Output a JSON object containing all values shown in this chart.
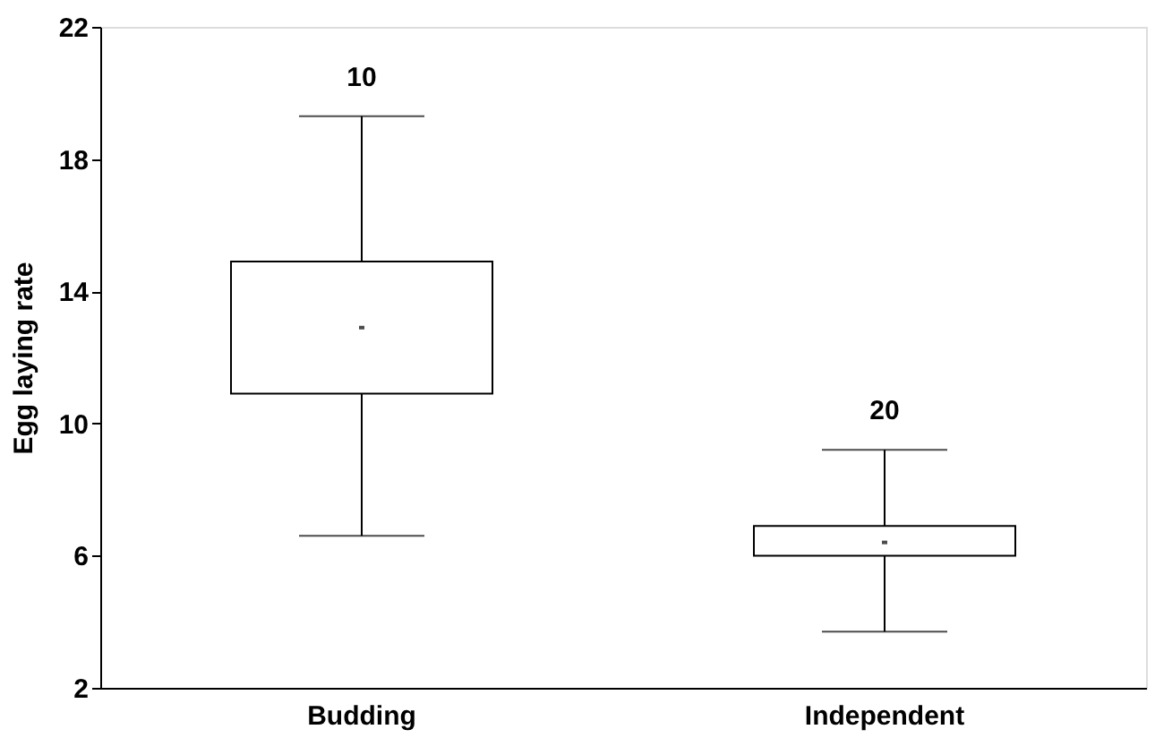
{
  "chart_data": {
    "type": "box",
    "ylabel": "Egg laying rate",
    "categories": [
      "Budding",
      "Independent"
    ],
    "boxes": [
      {
        "low": 6.6,
        "q1": 10.9,
        "median": 12.9,
        "q3": 14.9,
        "high": 19.3
      },
      {
        "low": 3.7,
        "q1": 6.0,
        "median": 6.4,
        "q3": 6.9,
        "high": 9.2
      }
    ],
    "ylim": [
      2,
      22
    ],
    "yticks": [
      2,
      6,
      10,
      14,
      18,
      22
    ],
    "grid": false,
    "annotations": [
      "10",
      "20"
    ]
  }
}
